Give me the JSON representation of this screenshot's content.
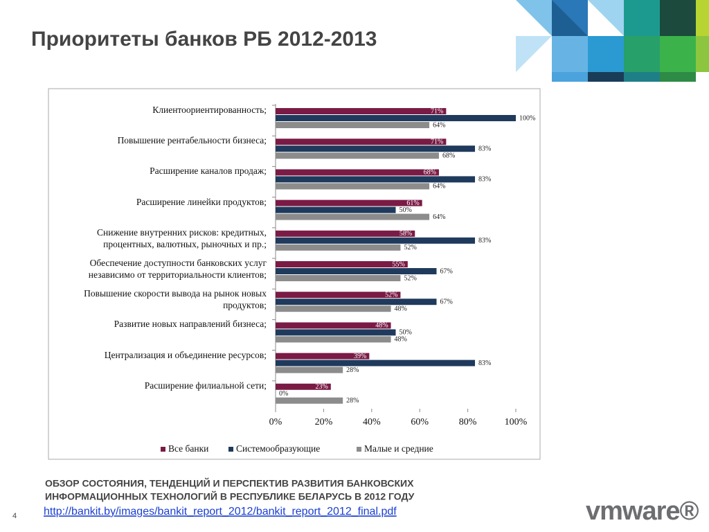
{
  "slide": {
    "title": "Приоритеты банков РБ 2012-2013",
    "footer": [
      "ОБЗОР СОСТОЯНИЯ, ТЕНДЕНЦИЙ И ПЕРСПЕКТИВ РАЗВИТИЯ БАНКОВСКИХ",
      "ИНФОРМАЦИОННЫХ ТЕХНОЛОГИЙ В РЕСПУБЛИКЕ БЕЛАРУСЬ В 2012 ГОДУ"
    ],
    "link": "http://bankit.by/images/bankit_report_2012/bankit_report_2012_final.pdf",
    "page_number": "4",
    "logo": "vmware®"
  },
  "chart_data": {
    "type": "hbar",
    "categories": [
      "Клиентоориентированность;",
      "Повышение рентабельности бизнеса;",
      "Расширение каналов продаж;",
      "Расширение линейки продуктов;",
      "Снижение внутренних рисков: кредитных,\nпроцентных, валютных, рыночных и пр.;",
      "Обеспечение доступности банковских услуг\nнезависимо от территориальности клиентов;",
      "Повышение скорости вывода на рынок новых\nпродуктов;",
      "Развитие новых направлений бизнеса;",
      "Централизация и объединение ресурсов;",
      "Расширение филиальной сети;"
    ],
    "series": [
      {
        "name": "Все банки",
        "color": "#7a1b45",
        "values": [
          71,
          71,
          68,
          61,
          58,
          55,
          52,
          48,
          39,
          23
        ],
        "value_labels": [
          "71%",
          "71%",
          "68%",
          "61%",
          "58%",
          "55%",
          "52%",
          "48%",
          "39%",
          "23%"
        ]
      },
      {
        "name": "Системообразующие",
        "color": "#1f3a5c",
        "values": [
          100,
          83,
          83,
          50,
          83,
          67,
          67,
          50,
          83,
          0
        ],
        "value_labels": [
          "100%",
          "83%",
          "83%",
          "50%",
          "83%",
          "67%",
          "67%",
          "50%",
          "83%",
          "0%"
        ]
      },
      {
        "name": "Малые и средние",
        "color": "#8c8c8c",
        "values": [
          64,
          68,
          64,
          64,
          52,
          52,
          48,
          48,
          28,
          28
        ],
        "value_labels": [
          "64%",
          "68%",
          "64%",
          "64%",
          "52%",
          "52%",
          "48%",
          "48%",
          "28%",
          "28%"
        ]
      }
    ],
    "xlim": [
      0,
      100
    ],
    "xticks": [
      {
        "value": 0,
        "label": "0%"
      },
      {
        "value": 20,
        "label": "20%"
      },
      {
        "value": 40,
        "label": "40%"
      },
      {
        "value": 60,
        "label": "60%"
      },
      {
        "value": 80,
        "label": "80%"
      },
      {
        "value": 100,
        "label": "100%"
      }
    ],
    "legend": "bottom"
  }
}
